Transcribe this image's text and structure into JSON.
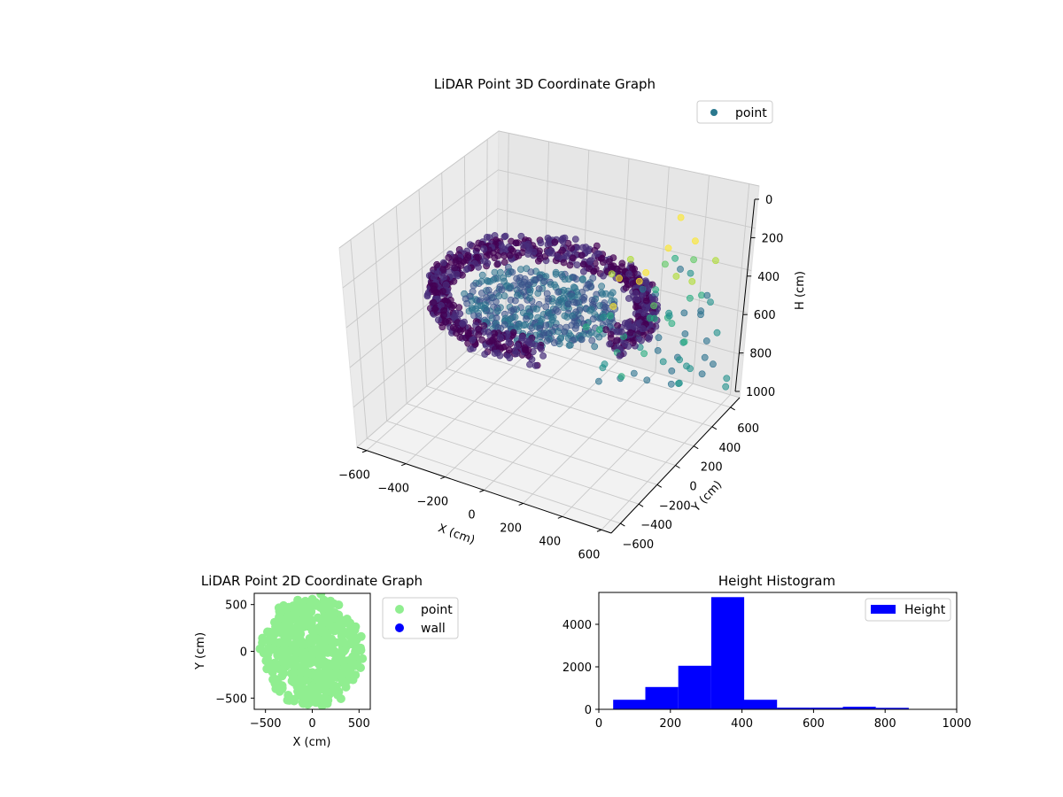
{
  "chart_data": [
    {
      "type": "scatter",
      "projection": "3d",
      "title": "LiDAR Point 3D Coordinate Graph",
      "xlabel": "X (cm)",
      "ylabel": "Y (cm)",
      "zlabel": "H (cm)",
      "xlim": [
        -650,
        650
      ],
      "ylim": [
        -700,
        700
      ],
      "zlim": [
        0,
        1000
      ],
      "z_inverted": true,
      "xticks": [
        "−600",
        "−400",
        "−200",
        "0",
        "200",
        "400",
        "600"
      ],
      "yticks": [
        "−600",
        "−400",
        "−200",
        "0",
        "200",
        "400",
        "600"
      ],
      "zticks": [
        "0",
        "200",
        "400",
        "600",
        "800",
        "1000"
      ],
      "colormap": "viridis",
      "grid": true,
      "legend": {
        "position": "top-right",
        "entries": [
          {
            "label": "point",
            "color": "#2a788e"
          }
        ]
      },
      "series": [
        {
          "name": "point",
          "description_shape": "ring",
          "ring_radius_range": [
            430,
            530
          ],
          "height_range": [
            300,
            420
          ],
          "marker_color": "#3b0f70"
        },
        {
          "name": "point",
          "description_shape": "disc",
          "radius_max": 350,
          "height": 380,
          "marker_color": "#31688e"
        },
        {
          "name": "point",
          "description_shape": "outliers",
          "height_range": [
            0,
            950
          ],
          "marker_color": "#5ec962"
        }
      ]
    },
    {
      "type": "scatter",
      "title": "LiDAR Point 2D Coordinate Graph",
      "xlabel": "X (cm)",
      "ylabel": "Y (cm)",
      "xlim": [
        -620,
        620
      ],
      "ylim": [
        -620,
        620
      ],
      "xticks": [
        -500,
        0,
        500
      ],
      "yticks": [
        -500,
        0,
        500
      ],
      "legend": {
        "position": "outside-right",
        "entries": [
          {
            "label": "point",
            "color": "#90ee90"
          },
          {
            "label": "wall",
            "color": "#0000ff"
          }
        ]
      },
      "series": [
        {
          "name": "point",
          "color": "#90ee90",
          "shape": "filled-blob",
          "center": [
            0,
            0
          ],
          "radius": 520
        },
        {
          "name": "wall",
          "color": "#0000ff",
          "values": []
        }
      ]
    },
    {
      "type": "bar",
      "subtype": "histogram",
      "title": "Height Histogram",
      "xlabel": "",
      "ylabel": "",
      "xlim": [
        0,
        1000
      ],
      "ylim": [
        0,
        5500
      ],
      "xticks": [
        0,
        200,
        400,
        600,
        800,
        1000
      ],
      "yticks": [
        0,
        2000,
        4000
      ],
      "color": "#0000ff",
      "legend": {
        "position": "top-right",
        "entries": [
          {
            "label": "Height",
            "color": "#0000ff"
          }
        ]
      },
      "bins": [
        {
          "x0": 40,
          "x1": 130,
          "count": 450
        },
        {
          "x0": 130,
          "x1": 222,
          "count": 1050
        },
        {
          "x0": 222,
          "x1": 314,
          "count": 2050
        },
        {
          "x0": 314,
          "x1": 406,
          "count": 5280
        },
        {
          "x0": 406,
          "x1": 498,
          "count": 450
        },
        {
          "x0": 498,
          "x1": 590,
          "count": 80
        },
        {
          "x0": 590,
          "x1": 682,
          "count": 80
        },
        {
          "x0": 682,
          "x1": 774,
          "count": 120
        },
        {
          "x0": 774,
          "x1": 866,
          "count": 70
        }
      ]
    }
  ]
}
